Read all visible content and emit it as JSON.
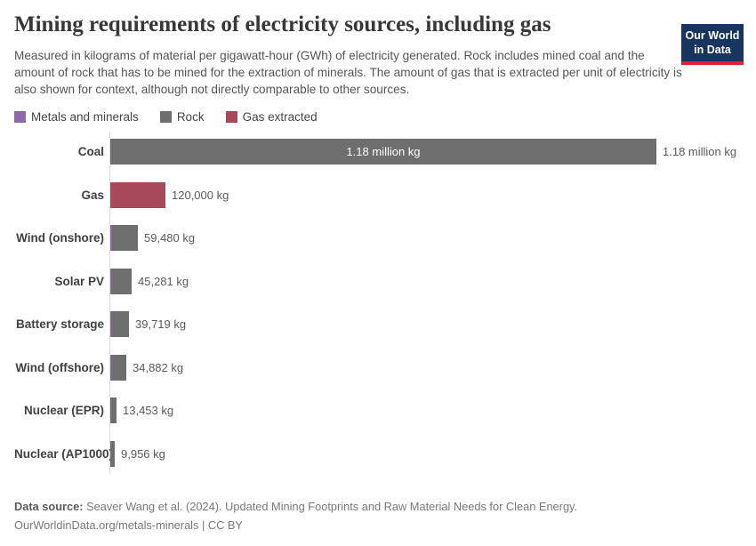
{
  "header": {
    "title": "Mining requirements of electricity sources, including gas",
    "subtitle": "Measured in kilograms of material per gigawatt-hour (GWh) of electricity generated. Rock includes mined coal and the amount of rock that has to be mined for the extraction of minerals. The amount of gas that is extracted per unit of electricity is also shown for context, although not directly comparable to other sources.",
    "logo": {
      "line1": "Our World",
      "line2": "in Data",
      "bg_color": "#17355e",
      "accent_color": "#d8242f"
    }
  },
  "legend": {
    "items": [
      {
        "label": "Metals and minerals",
        "color": "#8d68aa"
      },
      {
        "label": "Rock",
        "color": "#6e6e6e"
      },
      {
        "label": "Gas extracted",
        "color": "#a8495a"
      }
    ]
  },
  "chart_data": {
    "type": "bar",
    "orientation": "horizontal",
    "grid": false,
    "xlim": [
      0,
      1180000
    ],
    "categories": [
      "Coal",
      "Gas",
      "Wind (onshore)",
      "Solar PV",
      "Battery storage",
      "Wind (offshore)",
      "Nuclear (EPR)",
      "Nuclear (AP1000)"
    ],
    "values": [
      1180000,
      120000,
      59480,
      45281,
      39719,
      34882,
      13453,
      9956
    ],
    "value_labels": [
      "1.18 million kg",
      "120,000 kg",
      "59,480 kg",
      "45,281 kg",
      "39,719 kg",
      "34,882 kg",
      "13,453 kg",
      "9,956 kg"
    ],
    "inside_labels": [
      "1.18 million kg",
      "",
      "",
      "",
      "",
      "",
      "",
      ""
    ],
    "series_by_row": [
      "rock",
      "gas",
      "rock",
      "rock",
      "rock",
      "rock",
      "rock",
      "rock"
    ],
    "metals_sliver": [
      false,
      false,
      true,
      true,
      true,
      true,
      false,
      false
    ],
    "colors": {
      "rock": "#6e6e6e",
      "gas": "#a8495a",
      "metals": "#8d68aa"
    },
    "title": "Mining requirements of electricity sources, including gas",
    "xlabel": "",
    "ylabel": ""
  },
  "footer": {
    "source_label": "Data source:",
    "source_text": "Seaver Wang et al. (2024). Updated Mining Footprints and Raw Material Needs for Clean Energy.",
    "link_text": "OurWorldinData.org/metals-minerals | CC BY"
  }
}
